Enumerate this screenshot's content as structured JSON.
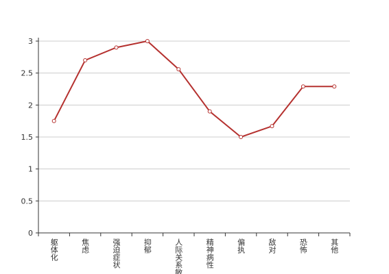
{
  "chart_data": {
    "type": "line",
    "categories": [
      "躯体化",
      "焦虑",
      "强迫症状",
      "抑郁",
      "人际关系敏感",
      "精神病性",
      "偏执",
      "敌对",
      "恐怖",
      "其他"
    ],
    "values": [
      1.75,
      2.7,
      2.9,
      3,
      2.56,
      1.9,
      1.5,
      1.67,
      2.29,
      2.29
    ],
    "color": "#b5312f",
    "ylim": [
      0,
      3
    ],
    "yticks": [
      0,
      0.5,
      1,
      1.5,
      2,
      2.5,
      3
    ],
    "grid": true
  }
}
